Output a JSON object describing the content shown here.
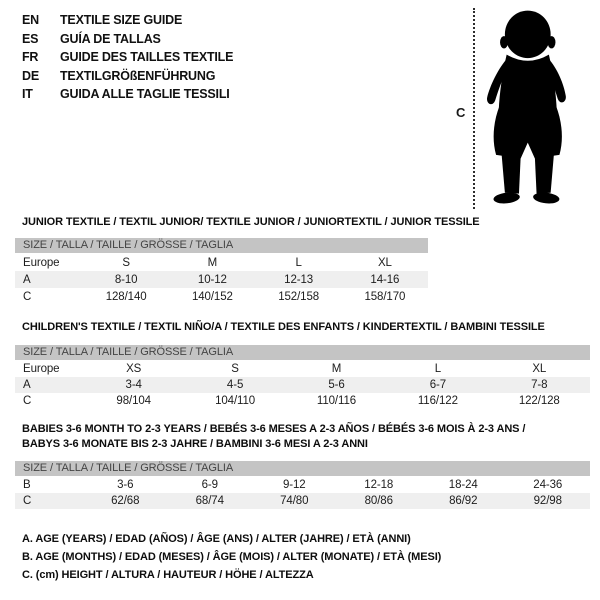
{
  "languages": [
    {
      "code": "EN",
      "title": "TEXTILE SIZE GUIDE"
    },
    {
      "code": "ES",
      "title": "GUÍA DE TALLAS"
    },
    {
      "code": "FR",
      "title": "GUIDE DES TAILLES TEXTILE"
    },
    {
      "code": "DE",
      "title": "TEXTILGRÖßENFÜHRUNG"
    },
    {
      "code": "IT",
      "title": "GUIDA ALLE TAGLIE TESSILI"
    }
  ],
  "figure": {
    "height_label": "C"
  },
  "sections": [
    {
      "title": "JUNIOR TEXTILE / TEXTIL JUNIOR/ TEXTILE JUNIOR / JUNIORTEXTIL / JUNIOR TESSILE",
      "size_header": "SIZE / TALLA / TAILLE / GRÖSSE / TAGLIA",
      "rows": [
        {
          "label": "Europe",
          "values": [
            "S",
            "M",
            "L",
            "XL"
          ]
        },
        {
          "label": "A",
          "values": [
            "8-10",
            "10-12",
            "12-13",
            "14-16"
          ]
        },
        {
          "label": "C",
          "values": [
            "128/140",
            "140/152",
            "152/158",
            "158/170"
          ]
        }
      ]
    },
    {
      "title": "CHILDREN'S TEXTILE / TEXTIL NIÑO/A / TEXTILE DES ENFANTS / KINDERTEXTIL / BAMBINI TESSILE",
      "size_header": "SIZE / TALLA / TAILLE / GRÖSSE / TAGLIA",
      "rows": [
        {
          "label": "Europe",
          "values": [
            "XS",
            "S",
            "M",
            "L",
            "XL"
          ]
        },
        {
          "label": "A",
          "values": [
            "3-4",
            "4-5",
            "5-6",
            "6-7",
            "7-8"
          ]
        },
        {
          "label": "C",
          "values": [
            "98/104",
            "104/110",
            "110/116",
            "116/122",
            "122/128"
          ]
        }
      ]
    },
    {
      "title": "BABIES 3-6 MONTH TO 2-3 YEARS / BEBÉS 3-6 MESES A 2-3 AÑOS / BÉBÉS 3-6 MOIS À 2-3 ANS /",
      "title2": "BABYS 3-6 MONATE BIS 2-3 JAHRE / BAMBINI 3-6 MESI A 2-3 ANNI",
      "size_header": "SIZE / TALLA / TAILLE / GRÖSSE / TAGLIA",
      "rows": [
        {
          "label": "B",
          "values": [
            "3-6",
            "6-9",
            "9-12",
            "12-18",
            "18-24",
            "24-36"
          ]
        },
        {
          "label": "C",
          "values": [
            "62/68",
            "68/74",
            "74/80",
            "80/86",
            "86/92",
            "92/98"
          ]
        }
      ]
    }
  ],
  "footnotes": [
    "A. AGE (YEARS) / EDAD (AÑOS) / ÂGE (ANS) / ALTER (JAHRE) / ETÀ (ANNI)",
    "B. AGE (MONTHS) / EDAD (MESES) / ÂGE (MOIS) / ALTER (MONATE) / ETÀ (MESI)",
    "C. (cm) HEIGHT / ALTURA / HAUTEUR / HÖHE / ALTEZZA"
  ],
  "colors": {
    "header_bar": "#c4c4c4",
    "row_alt": "#efefef",
    "bar_text": "#444444",
    "text": "#111111",
    "silhouette": "#000000"
  }
}
